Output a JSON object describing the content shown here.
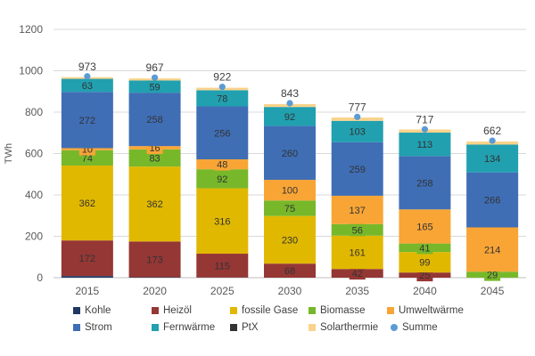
{
  "chart_data": {
    "type": "bar",
    "stacked": true,
    "ylabel": "TWh",
    "ylim": [
      0,
      1200
    ],
    "yticks": [
      0,
      200,
      400,
      600,
      800,
      1000,
      1200
    ],
    "grid": true,
    "legend_position": "bottom",
    "categories": [
      "2015",
      "2020",
      "2025",
      "2030",
      "2035",
      "2040",
      "2045"
    ],
    "series": [
      {
        "name": "Kohle",
        "color": "#1f3864",
        "values": [
          8,
          2,
          1,
          0,
          0,
          0,
          0
        ],
        "labels": [
          "",
          "",
          "",
          "",
          "",
          "",
          ""
        ]
      },
      {
        "name": "Heizöl",
        "color": "#953735",
        "values": [
          172,
          173,
          115,
          68,
          42,
          25,
          0
        ],
        "labels": [
          "172",
          "173",
          "115",
          "68",
          "42",
          "25",
          ""
        ]
      },
      {
        "name": "fossile Gase",
        "color": "#e1b800",
        "values": [
          362,
          362,
          316,
          230,
          161,
          99,
          0
        ],
        "labels": [
          "362",
          "362",
          "316",
          "230",
          "161",
          "99",
          ""
        ]
      },
      {
        "name": "Biomasse",
        "color": "#77b82a",
        "values": [
          74,
          83,
          92,
          75,
          56,
          41,
          29
        ],
        "labels": [
          "74",
          "83",
          "92",
          "75",
          "56",
          "41",
          "29"
        ]
      },
      {
        "name": "Umweltwärme",
        "color": "#f8a536",
        "values": [
          10,
          16,
          48,
          100,
          137,
          165,
          214
        ],
        "labels": [
          "10",
          "16",
          "48",
          "100",
          "137",
          "165",
          "214"
        ]
      },
      {
        "name": "Strom",
        "color": "#3f6eb5",
        "values": [
          272,
          258,
          256,
          260,
          259,
          258,
          266
        ],
        "labels": [
          "272",
          "258",
          "256",
          "260",
          "259",
          "258",
          "266"
        ]
      },
      {
        "name": "Fernwärme",
        "color": "#21a0b0",
        "values": [
          63,
          59,
          78,
          92,
          103,
          113,
          134
        ],
        "labels": [
          "63",
          "59",
          "78",
          "92",
          "103",
          "113",
          "134"
        ]
      },
      {
        "name": "PtX",
        "color": "#333333",
        "values": [
          0,
          0,
          0,
          0,
          0,
          0,
          0
        ],
        "labels": [
          "",
          "",
          "",
          "",
          "",
          "",
          ""
        ]
      },
      {
        "name": "Solarthermie",
        "color": "#f9d38b",
        "values": [
          8,
          10,
          12,
          14,
          16,
          15,
          15
        ],
        "labels": [
          "",
          "",
          "",
          "",
          "",
          "",
          ""
        ]
      }
    ],
    "total": {
      "name": "Summe",
      "color": "#5b9bd5",
      "values": [
        973,
        967,
        922,
        843,
        777,
        717,
        662
      ],
      "labels": [
        "973",
        "967",
        "922",
        "843",
        "777",
        "717",
        "662"
      ]
    }
  }
}
